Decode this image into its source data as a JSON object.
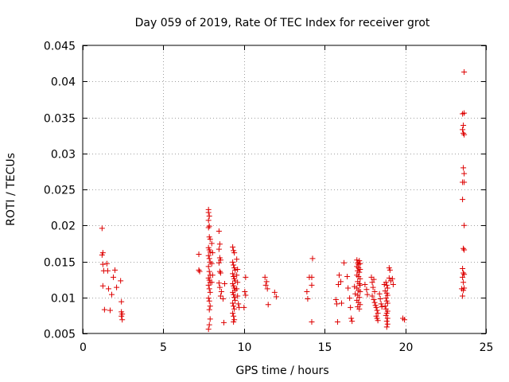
{
  "chart_data": {
    "type": "scatter",
    "title": "Day 059 of 2019, Rate Of TEC Index for receiver grot",
    "xlabel": "GPS time / hours",
    "ylabel": "ROTI / TECUs",
    "xlim": [
      0,
      25
    ],
    "ylim": [
      0.005,
      0.045
    ],
    "xticks": [
      0,
      5,
      10,
      15,
      20,
      25
    ],
    "xtick_labels": [
      "0",
      "5",
      "10",
      "15",
      "20",
      "25"
    ],
    "yticks": [
      0.005,
      0.01,
      0.015,
      0.02,
      0.025,
      0.03,
      0.035,
      0.04,
      0.045
    ],
    "ytick_labels": [
      "0.005",
      "0.01",
      "0.015",
      "0.02",
      "0.025",
      "0.03",
      "0.035",
      "0.04",
      "0.045"
    ],
    "grid": true,
    "marker": "+",
    "marker_color": "#dd0000",
    "points": [
      [
        1.2,
        0.0196
      ],
      [
        1.25,
        0.0162
      ],
      [
        1.2,
        0.0159
      ],
      [
        1.25,
        0.0146
      ],
      [
        1.3,
        0.0137
      ],
      [
        1.25,
        0.0116
      ],
      [
        1.35,
        0.0083
      ],
      [
        1.5,
        0.0147
      ],
      [
        1.55,
        0.0137
      ],
      [
        1.6,
        0.0112
      ],
      [
        1.7,
        0.0082
      ],
      [
        1.8,
        0.0104
      ],
      [
        1.9,
        0.0128
      ],
      [
        2.0,
        0.0138
      ],
      [
        2.1,
        0.0114
      ],
      [
        2.35,
        0.0123
      ],
      [
        2.4,
        0.0094
      ],
      [
        2.4,
        0.008
      ],
      [
        2.45,
        0.0077
      ],
      [
        2.4,
        0.0074
      ],
      [
        2.45,
        0.0069
      ],
      [
        7.2,
        0.016
      ],
      [
        7.2,
        0.0138
      ],
      [
        7.25,
        0.0136
      ],
      [
        7.8,
        0.0222
      ],
      [
        7.8,
        0.0218
      ],
      [
        7.85,
        0.0213
      ],
      [
        7.8,
        0.0207
      ],
      [
        7.85,
        0.0199
      ],
      [
        7.8,
        0.0197
      ],
      [
        7.85,
        0.0184
      ],
      [
        7.9,
        0.0181
      ],
      [
        7.8,
        0.0169
      ],
      [
        7.85,
        0.0166
      ],
      [
        7.9,
        0.0163
      ],
      [
        7.8,
        0.0158
      ],
      [
        7.85,
        0.0154
      ],
      [
        7.9,
        0.0149
      ],
      [
        7.8,
        0.0143
      ],
      [
        7.85,
        0.0136
      ],
      [
        7.9,
        0.0131
      ],
      [
        7.8,
        0.0127
      ],
      [
        7.85,
        0.0124
      ],
      [
        7.9,
        0.0121
      ],
      [
        7.8,
        0.0117
      ],
      [
        7.85,
        0.0112
      ],
      [
        7.9,
        0.0107
      ],
      [
        7.8,
        0.0099
      ],
      [
        7.85,
        0.0095
      ],
      [
        7.9,
        0.0088
      ],
      [
        7.85,
        0.0083
      ],
      [
        7.9,
        0.007
      ],
      [
        7.85,
        0.0062
      ],
      [
        7.8,
        0.0056
      ],
      [
        8.0,
        0.0175
      ],
      [
        8.05,
        0.0162
      ],
      [
        8.0,
        0.0147
      ],
      [
        8.05,
        0.0131
      ],
      [
        8.0,
        0.0121
      ],
      [
        8.45,
        0.0192
      ],
      [
        8.5,
        0.0174
      ],
      [
        8.45,
        0.0167
      ],
      [
        8.5,
        0.0155
      ],
      [
        8.55,
        0.0152
      ],
      [
        8.45,
        0.0148
      ],
      [
        8.5,
        0.0136
      ],
      [
        8.55,
        0.0134
      ],
      [
        8.45,
        0.012
      ],
      [
        8.5,
        0.0114
      ],
      [
        8.6,
        0.0108
      ],
      [
        8.55,
        0.0102
      ],
      [
        8.7,
        0.0098
      ],
      [
        8.8,
        0.0119
      ],
      [
        8.75,
        0.0065
      ],
      [
        9.3,
        0.017
      ],
      [
        9.35,
        0.0165
      ],
      [
        9.4,
        0.0162
      ],
      [
        9.3,
        0.0149
      ],
      [
        9.35,
        0.0145
      ],
      [
        9.4,
        0.0141
      ],
      [
        9.45,
        0.0138
      ],
      [
        9.3,
        0.0133
      ],
      [
        9.35,
        0.0129
      ],
      [
        9.4,
        0.0126
      ],
      [
        9.45,
        0.0123
      ],
      [
        9.3,
        0.0119
      ],
      [
        9.35,
        0.0116
      ],
      [
        9.4,
        0.0113
      ],
      [
        9.45,
        0.011
      ],
      [
        9.3,
        0.0107
      ],
      [
        9.35,
        0.0104
      ],
      [
        9.4,
        0.01
      ],
      [
        9.45,
        0.0096
      ],
      [
        9.3,
        0.0092
      ],
      [
        9.35,
        0.0088
      ],
      [
        9.4,
        0.0084
      ],
      [
        9.3,
        0.0078
      ],
      [
        9.35,
        0.0074
      ],
      [
        9.4,
        0.0069
      ],
      [
        9.35,
        0.0066
      ],
      [
        9.55,
        0.0153
      ],
      [
        9.6,
        0.0139
      ],
      [
        9.55,
        0.0131
      ],
      [
        9.6,
        0.0121
      ],
      [
        9.55,
        0.0112
      ],
      [
        9.6,
        0.0102
      ],
      [
        9.65,
        0.0091
      ],
      [
        9.7,
        0.0086
      ],
      [
        10.1,
        0.0128
      ],
      [
        10.05,
        0.0108
      ],
      [
        10.1,
        0.0103
      ],
      [
        10.0,
        0.0086
      ],
      [
        11.3,
        0.0128
      ],
      [
        11.4,
        0.0122
      ],
      [
        11.35,
        0.0117
      ],
      [
        11.45,
        0.0112
      ],
      [
        11.5,
        0.009
      ],
      [
        11.9,
        0.0107
      ],
      [
        12.0,
        0.0101
      ],
      [
        13.9,
        0.0108
      ],
      [
        13.95,
        0.0098
      ],
      [
        14.05,
        0.0128
      ],
      [
        14.2,
        0.0128
      ],
      [
        14.25,
        0.0154
      ],
      [
        14.2,
        0.0117
      ],
      [
        14.2,
        0.0066
      ],
      [
        15.7,
        0.0097
      ],
      [
        15.75,
        0.0091
      ],
      [
        15.8,
        0.0066
      ],
      [
        15.85,
        0.0118
      ],
      [
        15.9,
        0.0131
      ],
      [
        16.0,
        0.0122
      ],
      [
        16.05,
        0.0092
      ],
      [
        16.2,
        0.0148
      ],
      [
        16.4,
        0.0129
      ],
      [
        16.45,
        0.0113
      ],
      [
        16.55,
        0.0099
      ],
      [
        16.6,
        0.0086
      ],
      [
        16.65,
        0.0071
      ],
      [
        16.7,
        0.0067
      ],
      [
        16.85,
        0.0115
      ],
      [
        16.9,
        0.0105
      ],
      [
        17.0,
        0.0152
      ],
      [
        17.05,
        0.0148
      ],
      [
        17.1,
        0.0146
      ],
      [
        17.15,
        0.0151
      ],
      [
        17.0,
        0.0143
      ],
      [
        17.1,
        0.0141
      ],
      [
        17.2,
        0.0147
      ],
      [
        17.05,
        0.0137
      ],
      [
        17.15,
        0.0135
      ],
      [
        17.2,
        0.0139
      ],
      [
        17.0,
        0.0131
      ],
      [
        17.1,
        0.0129
      ],
      [
        17.2,
        0.0126
      ],
      [
        17.05,
        0.0122
      ],
      [
        17.15,
        0.0119
      ],
      [
        17.2,
        0.0117
      ],
      [
        17.0,
        0.0113
      ],
      [
        17.1,
        0.011
      ],
      [
        17.2,
        0.0108
      ],
      [
        17.05,
        0.0103
      ],
      [
        17.15,
        0.01
      ],
      [
        17.0,
        0.0096
      ],
      [
        17.1,
        0.0093
      ],
      [
        17.2,
        0.009
      ],
      [
        17.05,
        0.0087
      ],
      [
        17.15,
        0.0084
      ],
      [
        17.5,
        0.0118
      ],
      [
        17.6,
        0.0111
      ],
      [
        17.65,
        0.0104
      ],
      [
        17.9,
        0.0128
      ],
      [
        17.95,
        0.0121
      ],
      [
        18.05,
        0.0125
      ],
      [
        18.0,
        0.0114
      ],
      [
        18.1,
        0.0108
      ],
      [
        17.95,
        0.0102
      ],
      [
        18.05,
        0.0097
      ],
      [
        18.1,
        0.0093
      ],
      [
        18.15,
        0.0089
      ],
      [
        18.2,
        0.0086
      ],
      [
        18.25,
        0.0082
      ],
      [
        18.3,
        0.0078
      ],
      [
        18.2,
        0.0074
      ],
      [
        18.25,
        0.0071
      ],
      [
        18.3,
        0.0068
      ],
      [
        18.4,
        0.0105
      ],
      [
        18.45,
        0.0098
      ],
      [
        18.5,
        0.0091
      ],
      [
        18.55,
        0.0087
      ],
      [
        18.7,
        0.0118
      ],
      [
        18.8,
        0.0121
      ],
      [
        18.85,
        0.0117
      ],
      [
        18.9,
        0.0113
      ],
      [
        18.75,
        0.0109
      ],
      [
        18.85,
        0.0106
      ],
      [
        18.9,
        0.0103
      ],
      [
        18.8,
        0.0099
      ],
      [
        18.85,
        0.0095
      ],
      [
        18.9,
        0.0092
      ],
      [
        18.75,
        0.0088
      ],
      [
        18.8,
        0.0084
      ],
      [
        18.9,
        0.0081
      ],
      [
        18.85,
        0.0078
      ],
      [
        18.8,
        0.0075
      ],
      [
        18.9,
        0.0071
      ],
      [
        18.85,
        0.0067
      ],
      [
        18.9,
        0.0063
      ],
      [
        18.85,
        0.0059
      ],
      [
        19.0,
        0.0141
      ],
      [
        19.05,
        0.0138
      ],
      [
        19.0,
        0.0127
      ],
      [
        19.1,
        0.0123
      ],
      [
        19.2,
        0.0126
      ],
      [
        19.25,
        0.0118
      ],
      [
        19.85,
        0.0071
      ],
      [
        19.95,
        0.0069
      ],
      [
        23.65,
        0.0413
      ],
      [
        23.55,
        0.0355
      ],
      [
        23.65,
        0.0356
      ],
      [
        23.6,
        0.0339
      ],
      [
        23.55,
        0.0333
      ],
      [
        23.6,
        0.0328
      ],
      [
        23.65,
        0.0326
      ],
      [
        23.6,
        0.028
      ],
      [
        23.65,
        0.0272
      ],
      [
        23.55,
        0.026
      ],
      [
        23.65,
        0.026
      ],
      [
        23.55,
        0.0236
      ],
      [
        23.65,
        0.02
      ],
      [
        23.6,
        0.0168
      ],
      [
        23.65,
        0.0166
      ],
      [
        23.55,
        0.014
      ],
      [
        23.6,
        0.0134
      ],
      [
        23.65,
        0.0132
      ],
      [
        23.55,
        0.0128
      ],
      [
        23.6,
        0.0121
      ],
      [
        23.65,
        0.0113
      ],
      [
        23.5,
        0.0112
      ],
      [
        23.6,
        0.011
      ],
      [
        23.55,
        0.0102
      ]
    ]
  }
}
